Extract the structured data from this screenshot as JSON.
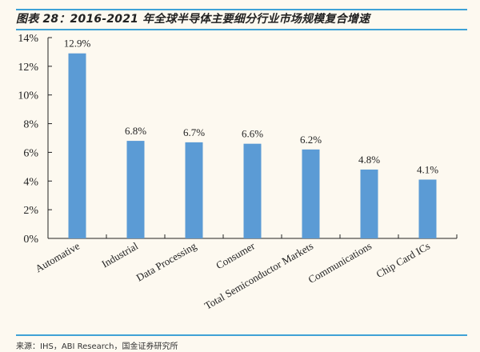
{
  "header": {
    "title": "图表 28：2016-2021 年全球半导体主要细分行业市场规模复合增速"
  },
  "footer": {
    "source": "来源：IHS，ABI Research，国金证券研究所"
  },
  "colors": {
    "bar": "#5b9bd5",
    "rule": "#3fa2d6",
    "background": "#fdf9f0"
  },
  "chart_data": {
    "type": "bar",
    "title": "2016-2021 年全球半导体主要细分行业市场规模复合增速",
    "xlabel": "",
    "ylabel": "",
    "ylim": [
      0,
      14
    ],
    "yticks": [
      "0%",
      "2%",
      "4%",
      "6%",
      "8%",
      "10%",
      "12%",
      "14%"
    ],
    "grid": false,
    "legend": null,
    "categories": [
      "Automative",
      "Industrial",
      "Data Processing",
      "Consumer",
      "Total Semiconductor Markets",
      "Communications",
      "Chip Card ICs"
    ],
    "values": [
      12.9,
      6.8,
      6.7,
      6.6,
      6.2,
      4.8,
      4.1
    ],
    "data_labels": [
      "12.9%",
      "6.8%",
      "6.7%",
      "6.6%",
      "6.2%",
      "4.8%",
      "4.1%"
    ]
  }
}
